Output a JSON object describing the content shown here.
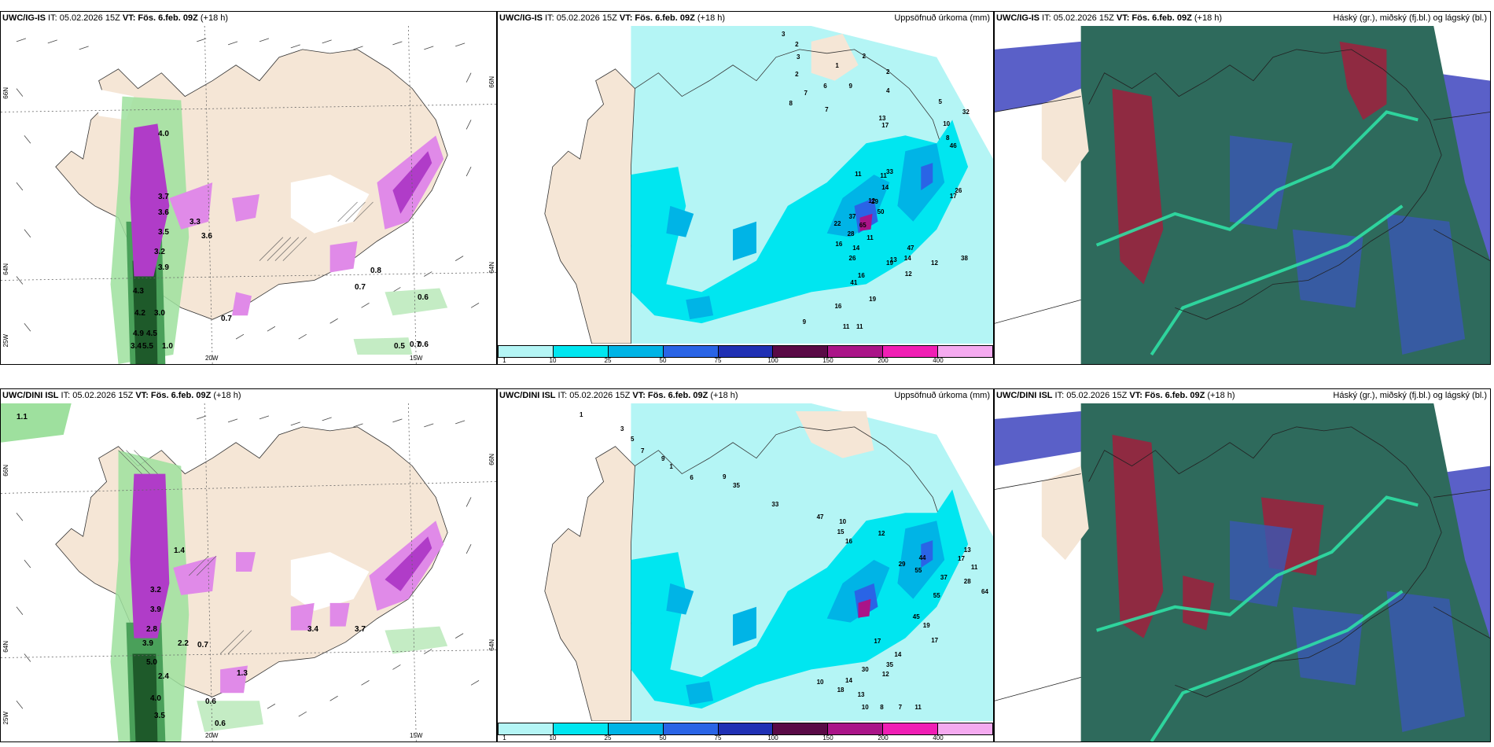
{
  "panels": [
    {
      "id": "igis-wind",
      "title_prefix": "UWC/IG-IS",
      "title_time": " IT: 05.02.2026 15Z ",
      "title_vt_label": "VT: Fös. 6.feb. 09Z",
      "title_lead": " (+18 h)",
      "right_label": "",
      "lon_labels": [
        "20W",
        "15W"
      ],
      "lat_labels": [
        "66N",
        "64N",
        "25W"
      ],
      "lat_right": [
        "66N",
        "64N"
      ],
      "values": [
        "4.0",
        "3.7",
        "3.6",
        "3.5",
        "3.2",
        "3.9",
        "3.3",
        "3.6",
        "4.3",
        "4.2",
        "3.0",
        "4.9",
        "4.5",
        "5.5",
        "1.0",
        "3.4",
        "0.7",
        "0.8",
        "0.7",
        "0.6",
        "0.5",
        "0.7",
        "0.6"
      ]
    },
    {
      "id": "igis-precip",
      "title_prefix": "UWC/IG-IS",
      "title_time": " IT: 05.02.2026 15Z ",
      "title_vt_label": "VT: Fös. 6.feb. 09Z",
      "title_lead": " (+18 h)",
      "right_label": "Uppsöfnuð úrkoma (mm)",
      "values": [
        "3",
        "2",
        "3",
        "2",
        "1",
        "2",
        "8",
        "7",
        "6",
        "7",
        "9",
        "2",
        "4",
        "5",
        "32",
        "10",
        "46",
        "13",
        "17",
        "8",
        "11",
        "11",
        "14",
        "12",
        "33",
        "17",
        "26",
        "37",
        "28",
        "11",
        "29",
        "50",
        "47",
        "12",
        "19",
        "14",
        "16",
        "26",
        "65",
        "22",
        "16",
        "14",
        "13",
        "12",
        "38",
        "41",
        "19",
        "16",
        "9",
        "11",
        "11"
      ]
    },
    {
      "id": "igis-cloud",
      "title_prefix": "UWC/IG-IS",
      "title_time": " IT: 05.02.2026 15Z ",
      "title_vt_label": "VT: Fös. 6.feb. 09Z",
      "title_lead": " (+18 h)",
      "right_label": "Háský (gr.), miðský (fj.bl.) og lágský (bl.)"
    },
    {
      "id": "dini-wind",
      "title_prefix": "UWC/DINI ISL",
      "title_time": " IT: 05.02.2026 15Z ",
      "title_vt_label": "VT: Fös. 6.feb. 09Z",
      "title_lead": " (+18 h)",
      "right_label": "",
      "lon_labels": [
        "20W",
        "15W"
      ],
      "lat_labels": [
        "66N",
        "64N",
        "25W"
      ],
      "lat_right": [
        "66N",
        "64N"
      ],
      "values": [
        "1.1",
        "1.4",
        "3.2",
        "3.9",
        "2.8",
        "3.9",
        "2.2",
        "5.0",
        "2.4",
        "4.0",
        "3.5",
        "0.7",
        "3.4",
        "3.7",
        "0.6",
        "0.6",
        "1.3"
      ]
    },
    {
      "id": "dini-precip",
      "title_prefix": "UWC/DINI ISL",
      "title_time": " IT: 05.02.2026 15Z ",
      "title_vt_label": "VT: Fös. 6.feb. 09Z",
      "title_lead": " (+18 h)",
      "right_label": "Uppsöfnuð úrkoma (mm)",
      "values": [
        "1",
        "3",
        "5",
        "7",
        "9",
        "1",
        "6",
        "9",
        "35",
        "33",
        "47",
        "10",
        "15",
        "12",
        "16",
        "44",
        "55",
        "29",
        "37",
        "17",
        "13",
        "11",
        "28",
        "64",
        "55",
        "45",
        "19",
        "17",
        "17",
        "14",
        "35",
        "30",
        "12",
        "14",
        "10",
        "18",
        "13",
        "8",
        "7",
        "10",
        "11"
      ]
    },
    {
      "id": "dini-cloud",
      "title_prefix": "UWC/DINI ISL",
      "title_time": " IT: 05.02.2026 15Z ",
      "title_vt_label": "VT: Fös. 6.feb. 09Z",
      "title_lead": " (+18 h)",
      "right_label": "Háský (gr.), miðský (fj.bl.) og lágský (bl.)"
    }
  ],
  "colorbar": {
    "labels": [
      "1",
      "10",
      "25",
      "50",
      "75",
      "100",
      "150",
      "200",
      "400"
    ],
    "colors": [
      "#b4f5f5",
      "#00e6f0",
      "#00b4e6",
      "#2a64e6",
      "#2030b4",
      "#5a0a46",
      "#aa1488",
      "#f01eb4",
      "#f5aaf0"
    ]
  },
  "colors": {
    "land": "#f5e6d6",
    "precip_light": "#b4f5f5",
    "precip_mid": "#00e6f0",
    "wind_green": "#9ee09e",
    "wind_dark": "#1e5a2a",
    "purple": "#b03cc8",
    "cloud_dark": "#2e6a5c",
    "cloud_blue": "#3a58b4",
    "cloud_red": "#a01e3c"
  }
}
